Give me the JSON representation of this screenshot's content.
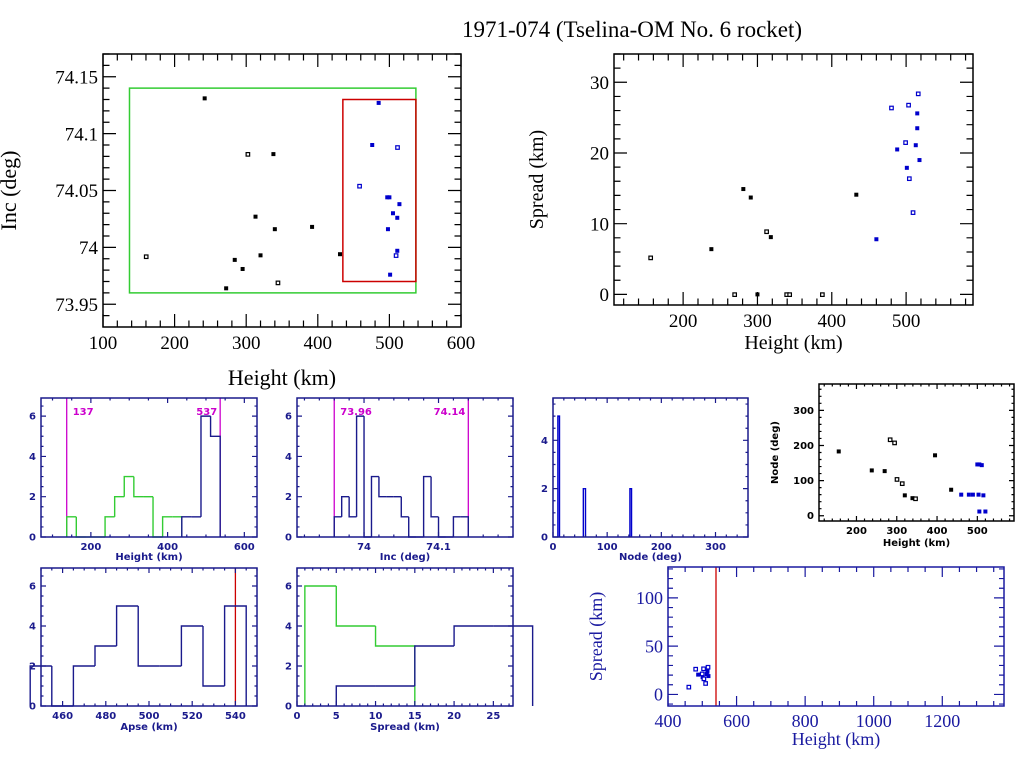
{
  "title": "1971-074 (Tselina-OM No. 6 rocket)",
  "colors": {
    "black": "#000000",
    "blue": "#0000cc",
    "navy": "#1a1a8c",
    "green": "#33cc33",
    "red": "#cc0000",
    "magenta": "#cc00cc"
  },
  "chart_data": [
    {
      "type": "scatter",
      "xlabel": "Height (km)",
      "ylabel": "Inc (deg)",
      "xlim": [
        100,
        600
      ],
      "ylim": [
        73.93,
        74.17
      ],
      "xticks": [
        "100",
        "200",
        "300",
        "400",
        "500",
        "600"
      ],
      "xtick_values": [
        100,
        200,
        300,
        400,
        500,
        600
      ],
      "xminor": 20,
      "yticks": [
        "73.95",
        "74",
        "74.05",
        "74.1",
        "74.15"
      ],
      "ytick_values": [
        73.95,
        74,
        74.05,
        74.1,
        74.15
      ],
      "yminor": 0.01,
      "boxes": [
        {
          "x": [
            137,
            537
          ],
          "y": [
            73.96,
            74.14
          ],
          "color": "#33cc33"
        },
        {
          "x": [
            435,
            537
          ],
          "y": [
            73.97,
            74.13
          ],
          "color": "#cc0000"
        }
      ],
      "series": [
        {
          "color": "#000000",
          "points": [
            [
              242,
              74.131
            ],
            [
              338,
              74.082
            ],
            [
              313,
              74.027
            ],
            [
              340,
              74.016
            ],
            [
              392,
              74.018
            ],
            [
              284,
              73.989
            ],
            [
              320,
              73.993
            ],
            [
              295,
              73.981
            ],
            [
              272,
              73.964
            ],
            [
              431,
              73.994
            ]
          ],
          "open_points": [
            [
              302,
              74.082
            ],
            [
              160,
              73.992
            ],
            [
              344,
              73.969
            ]
          ]
        },
        {
          "color": "#0000cc",
          "points": [
            [
              485,
              74.127
            ],
            [
              476,
              74.09
            ],
            [
              497,
              74.044
            ],
            [
              500,
              74.044
            ],
            [
              514,
              74.038
            ],
            [
              505,
              74.03
            ],
            [
              511,
              74.026
            ],
            [
              498,
              74.016
            ],
            [
              511,
              73.997
            ],
            [
              501,
              73.976
            ]
          ],
          "open_points": [
            [
              511,
              74.088
            ],
            [
              458,
              74.054
            ],
            [
              509,
              73.993
            ]
          ]
        }
      ]
    },
    {
      "type": "scatter",
      "xlabel": "Height (km)",
      "ylabel": "Spread (km)",
      "xlim": [
        107,
        590
      ],
      "ylim": [
        -1.5,
        34
      ],
      "xticks": [
        "200",
        "300",
        "400",
        "500"
      ],
      "xtick_values": [
        200,
        300,
        400,
        500
      ],
      "xminor": 20,
      "yticks": [
        "0",
        "10",
        "20",
        "30"
      ],
      "ytick_values": [
        0,
        10,
        20,
        30
      ],
      "yminor": 2,
      "series": [
        {
          "color": "#000000",
          "points": [
            [
              238,
              6.4
            ],
            [
              281,
              14.9
            ],
            [
              291,
              13.7
            ],
            [
              318,
              8.1
            ],
            [
              300,
              0
            ],
            [
              433,
              14.1
            ]
          ],
          "open_points": [
            [
              156,
              5.2
            ],
            [
              312,
              8.9
            ],
            [
              269,
              0
            ],
            [
              339,
              0
            ],
            [
              343,
              0
            ],
            [
              387,
              0
            ]
          ]
        },
        {
          "color": "#0000cc",
          "points": [
            [
              460,
              7.8
            ],
            [
              488,
              20.5
            ],
            [
              501,
              17.9
            ],
            [
              513,
              21.1
            ],
            [
              515,
              25.6
            ],
            [
              515,
              23.5
            ],
            [
              518,
              19.0
            ]
          ],
          "open_points": [
            [
              480,
              26.4
            ],
            [
              499,
              21.5
            ],
            [
              503,
              26.8
            ],
            [
              504,
              16.4
            ],
            [
              509,
              11.6
            ],
            [
              516,
              28.4
            ]
          ]
        }
      ]
    },
    {
      "type": "bar",
      "xlabel": "Height (km)",
      "ylabel": "",
      "xlim": [
        70,
        633
      ],
      "ylim": [
        0,
        6.9
      ],
      "xticks": [
        "200",
        "400",
        "600"
      ],
      "xtick_values": [
        200,
        400,
        600
      ],
      "xminor": 50,
      "yticks": [
        "0",
        "2",
        "4",
        "6"
      ],
      "ytick_values": [
        0,
        2,
        4,
        6
      ],
      "yminor": 0.5,
      "vlines": [
        {
          "x": 137,
          "label": "137",
          "color": "#cc00cc"
        },
        {
          "x": 537,
          "label": "537",
          "color": "#cc00cc"
        }
      ],
      "series": [
        {
          "color": "#33cc33",
          "edges": [
            137,
            162,
            187,
            212,
            237,
            262,
            287,
            312,
            337,
            362,
            387,
            412,
            437
          ],
          "counts": [
            1,
            0,
            0,
            0,
            1,
            2,
            3,
            2,
            2,
            0,
            1,
            1
          ]
        },
        {
          "color": "#1a1a8c",
          "edges": [
            437,
            462,
            487,
            512,
            537
          ],
          "counts": [
            1,
            1,
            6,
            5
          ]
        }
      ]
    },
    {
      "type": "bar",
      "xlabel": "Inc (deg)",
      "ylabel": "",
      "xlim": [
        73.91,
        74.2
      ],
      "ylim": [
        0,
        6.9
      ],
      "xticks": [
        "74",
        "74.1"
      ],
      "xtick_values": [
        74,
        74.1
      ],
      "xminor": 0.02,
      "yticks": [
        "0",
        "2",
        "4",
        "6"
      ],
      "ytick_values": [
        0,
        2,
        4,
        6
      ],
      "yminor": 0.5,
      "vlines": [
        {
          "x": 73.96,
          "label": "73.96",
          "color": "#cc00cc"
        },
        {
          "x": 74.14,
          "label": "74.14",
          "color": "#cc00cc"
        }
      ],
      "series": [
        {
          "color": "#1a1a8c",
          "edges": [
            73.96,
            73.97,
            73.98,
            73.99,
            74.0,
            74.01,
            74.02,
            74.03,
            74.04,
            74.05,
            74.06,
            74.07,
            74.08,
            74.09,
            74.1,
            74.11,
            74.12,
            74.13,
            74.14
          ],
          "counts": [
            1,
            2,
            1,
            6,
            0,
            3,
            2,
            2,
            2,
            1,
            0,
            0,
            3,
            1,
            0,
            0,
            1,
            1
          ]
        }
      ]
    },
    {
      "type": "bar",
      "xlabel": "Node (deg)",
      "ylabel": "",
      "xlim": [
        0,
        360
      ],
      "ylim": [
        0,
        5.75
      ],
      "xticks": [
        "0",
        "100",
        "200",
        "300"
      ],
      "xtick_values": [
        0,
        100,
        200,
        300
      ],
      "xminor": 20,
      "yticks": [
        "0",
        "2",
        "4"
      ],
      "ytick_values": [
        0,
        2,
        4
      ],
      "yminor": 0.5,
      "series": [
        {
          "color": "#0000cc",
          "edges": [
            9,
            12
          ],
          "counts": [
            5
          ]
        },
        {
          "color": "#0000cc",
          "edges": [
            56,
            58,
            60
          ],
          "counts": [
            2,
            2
          ]
        },
        {
          "color": "#0000cc",
          "edges": [
            142,
            145
          ],
          "counts": [
            2
          ]
        }
      ]
    },
    {
      "type": "scatter",
      "xlabel": "Height (km)",
      "ylabel": "Node (deg)",
      "xlim": [
        107,
        591
      ],
      "ylim": [
        -15,
        375
      ],
      "xticks": [
        "200",
        "300",
        "400",
        "500"
      ],
      "xtick_values": [
        200,
        300,
        400,
        500
      ],
      "xminor": 20,
      "yticks": [
        "0",
        "100",
        "200",
        "300"
      ],
      "ytick_values": [
        0,
        100,
        200,
        300
      ],
      "yminor": 20,
      "series": [
        {
          "color": "#000000",
          "points": [
            [
              156,
              183
            ],
            [
              238,
              129
            ],
            [
              270,
              127
            ],
            [
              320,
              58
            ],
            [
              339,
              50
            ],
            [
              395,
              172
            ],
            [
              435,
              74
            ]
          ],
          "open_points": [
            [
              283,
              217
            ],
            [
              294,
              208
            ],
            [
              300,
              104
            ],
            [
              313,
              92
            ],
            [
              346,
              49
            ]
          ]
        },
        {
          "color": "#0000cc",
          "points": [
            [
              460,
              60
            ],
            [
              479,
              60
            ],
            [
              489,
              60
            ],
            [
              503,
              60
            ],
            [
              515,
              58
            ],
            [
              500,
              146
            ],
            [
              505,
              146
            ],
            [
              511,
              144
            ],
            [
              505,
              12
            ],
            [
              520,
              12
            ]
          ],
          "open_points": []
        }
      ]
    },
    {
      "type": "bar",
      "xlabel": "Apse (km)",
      "ylabel": "",
      "xlim": [
        450,
        550
      ],
      "ylim": [
        0,
        6.9
      ],
      "xticks": [
        "460",
        "480",
        "500",
        "520",
        "540"
      ],
      "xtick_values": [
        460,
        480,
        500,
        520,
        540
      ],
      "xminor": 5,
      "yticks": [
        "0",
        "2",
        "4",
        "6"
      ],
      "ytick_values": [
        0,
        2,
        4,
        6
      ],
      "yminor": 0.5,
      "vlines": [
        {
          "x": 540,
          "label": "",
          "color": "#cc0000"
        }
      ],
      "series": [
        {
          "color": "#1a1a8c",
          "edges": [
            445,
            455,
            465,
            475,
            485,
            495,
            505,
            515,
            525,
            535,
            545
          ],
          "counts": [
            2,
            0,
            2,
            3,
            5,
            2,
            2,
            4,
            1,
            5
          ]
        }
      ]
    },
    {
      "type": "bar",
      "xlabel": "Spread (km)",
      "ylabel": "",
      "xlim": [
        0,
        27.5
      ],
      "ylim": [
        0,
        6.9
      ],
      "xticks": [
        "0",
        "5",
        "10",
        "15",
        "20",
        "25"
      ],
      "xtick_values": [
        0,
        5,
        10,
        15,
        20,
        25
      ],
      "xminor": 1,
      "yticks": [
        "0",
        "2",
        "4",
        "6"
      ],
      "ytick_values": [
        0,
        2,
        4,
        6
      ],
      "yminor": 0.5,
      "series": [
        {
          "color": "#33cc33",
          "edges": [
            1,
            5,
            10,
            15
          ],
          "counts": [
            6,
            4,
            3
          ]
        },
        {
          "color": "#1a1a8c",
          "edges": [
            5,
            10,
            15,
            20,
            25,
            30
          ],
          "counts": [
            1,
            1,
            3,
            4,
            4
          ]
        }
      ]
    },
    {
      "type": "scatter",
      "xlabel": "Height (km)",
      "ylabel": "Spread (km)",
      "xlim": [
        400,
        1380
      ],
      "ylim": [
        -12,
        132
      ],
      "xticks": [
        "400",
        "600",
        "800",
        "1000",
        "1200"
      ],
      "xtick_values": [
        400,
        600,
        800,
        1000,
        1200
      ],
      "xminor": 50,
      "yticks": [
        "0",
        "50",
        "100"
      ],
      "ytick_values": [
        0,
        50,
        100
      ],
      "yminor": 10,
      "vlines": [
        {
          "x": 540,
          "label": "",
          "color": "#cc0000"
        }
      ],
      "series": [
        {
          "color": "#0000cc",
          "points": [
            [
              488,
              20.5
            ],
            [
              501,
              17.9
            ],
            [
              513,
              21.1
            ],
            [
              515,
              25.6
            ],
            [
              515,
              23.5
            ],
            [
              518,
              19.0
            ]
          ],
          "open_points": [
            [
              460,
              7.8
            ],
            [
              480,
              26.4
            ],
            [
              499,
              21.5
            ],
            [
              503,
              26.8
            ],
            [
              504,
              16.4
            ],
            [
              509,
              11.6
            ],
            [
              516,
              28.4
            ]
          ]
        }
      ]
    }
  ]
}
